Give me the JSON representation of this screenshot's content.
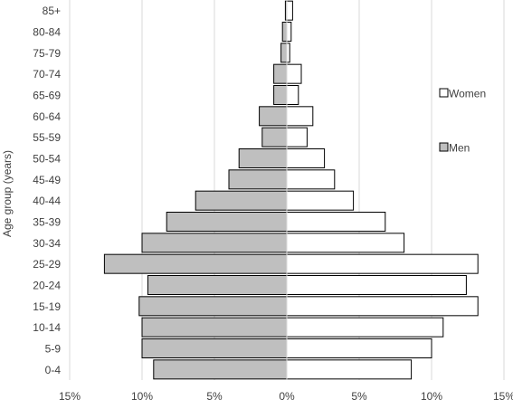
{
  "chart_data": {
    "type": "bar",
    "orientation": "horizontal",
    "subtype": "population-pyramid",
    "title": "",
    "xlabel": "",
    "ylabel": "Age group (years)",
    "xlim": [
      -15,
      15
    ],
    "x_ticks": [
      -15,
      -10,
      -5,
      0,
      5,
      10,
      15
    ],
    "x_tick_labels": [
      "15%",
      "10%",
      "5%",
      "0%",
      "5%",
      "10%",
      "15%"
    ],
    "grid": "vertical",
    "categories": [
      "0-4",
      "5-9",
      "10-14",
      "15-19",
      "20-24",
      "25-29",
      "30-34",
      "35-39",
      "40-44",
      "45-49",
      "50-54",
      "55-59",
      "60-64",
      "65-69",
      "70-74",
      "75-79",
      "80-84",
      "85+"
    ],
    "series": [
      {
        "name": "Men",
        "side": "left",
        "color": "#bfbfbf",
        "values": [
          9.2,
          10.0,
          10.0,
          10.2,
          9.6,
          12.6,
          10.0,
          8.3,
          6.3,
          4.0,
          3.3,
          1.7,
          1.9,
          0.9,
          0.9,
          0.4,
          0.3,
          0.1
        ]
      },
      {
        "name": "Women",
        "side": "right",
        "color": "#ffffff",
        "values": [
          8.6,
          10.0,
          10.8,
          13.2,
          12.4,
          13.2,
          8.1,
          6.8,
          4.6,
          3.3,
          2.6,
          1.4,
          1.8,
          0.8,
          1.0,
          0.2,
          0.3,
          0.4
        ]
      }
    ],
    "legend_position": "right"
  }
}
